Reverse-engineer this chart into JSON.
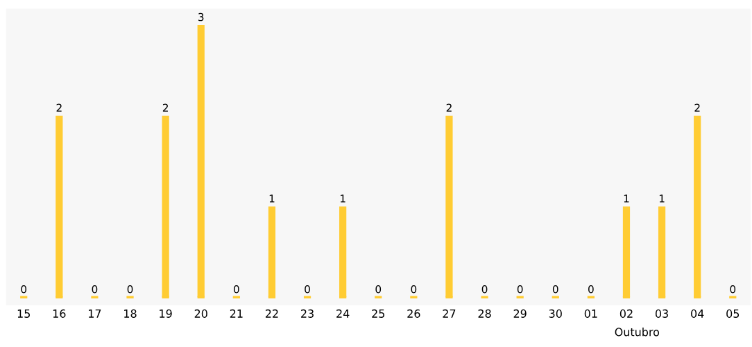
{
  "chart_data": {
    "type": "bar",
    "xlabel": "Outubro",
    "categories": [
      "15",
      "16",
      "17",
      "18",
      "19",
      "20",
      "21",
      "22",
      "23",
      "24",
      "25",
      "26",
      "27",
      "28",
      "29",
      "30",
      "01",
      "02",
      "03",
      "04",
      "05"
    ],
    "values": [
      0,
      2,
      0,
      0,
      2,
      3,
      0,
      1,
      0,
      1,
      0,
      0,
      2,
      0,
      0,
      0,
      0,
      1,
      1,
      2,
      0
    ],
    "color": "#ffcc33",
    "data_labels": true,
    "grid": false,
    "legend": false
  }
}
